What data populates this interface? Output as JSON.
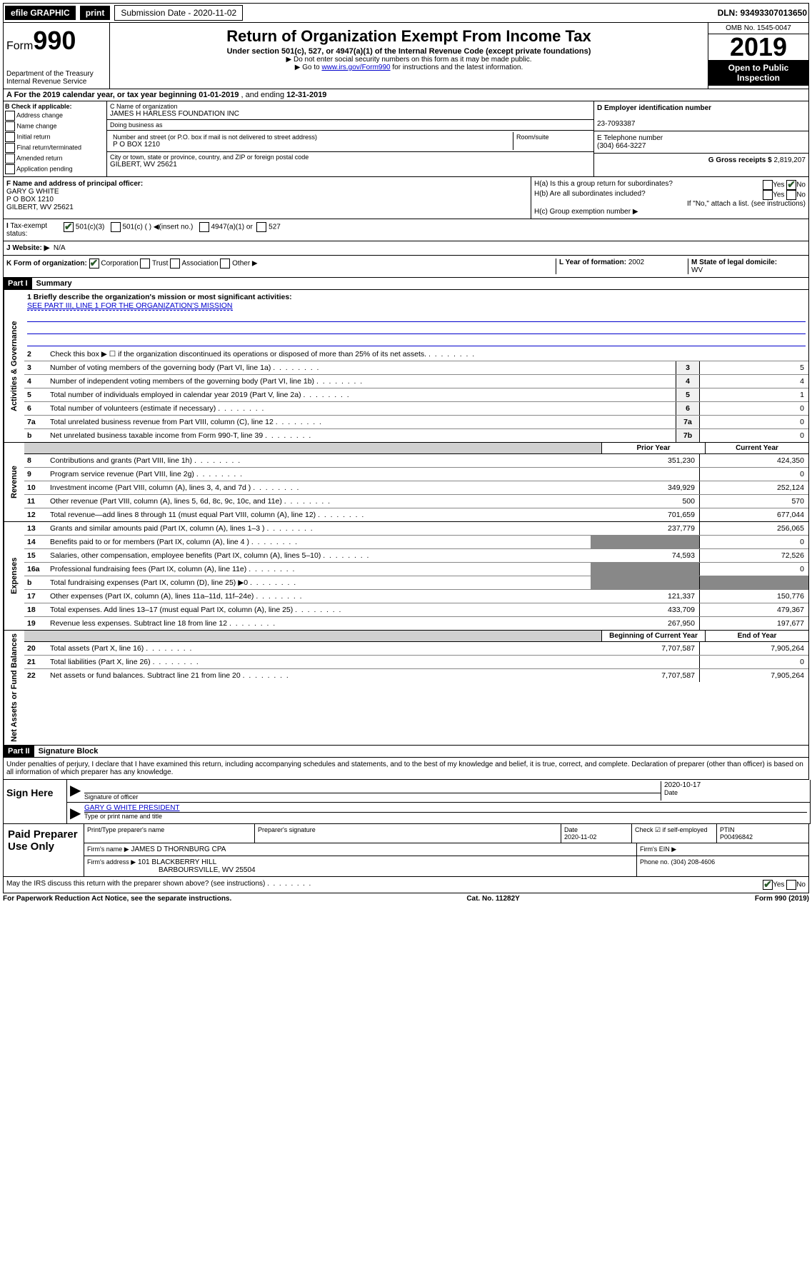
{
  "topbar": {
    "efile": "efile GRAPHIC",
    "print": "print",
    "submission": "Submission Date - 2020-11-02",
    "dln": "DLN: 93493307013650"
  },
  "header": {
    "form_prefix": "Form",
    "form_number": "990",
    "dept": "Department of the Treasury",
    "irs": "Internal Revenue Service",
    "title": "Return of Organization Exempt From Income Tax",
    "sub1": "Under section 501(c), 527, or 4947(a)(1) of the Internal Revenue Code (except private foundations)",
    "sub2a": "▶ Do not enter social security numbers on this form as it may be made public.",
    "sub2b_pre": "▶ Go to ",
    "sub2b_link": "www.irs.gov/Form990",
    "sub2b_post": " for instructions and the latest information.",
    "omb": "OMB No. 1545-0047",
    "year": "2019",
    "openpub1": "Open to Public",
    "openpub2": "Inspection"
  },
  "rowA": {
    "text_pre": "A For the 2019 calendar year, or tax year beginning ",
    "begin": "01-01-2019",
    "mid": " , and ending ",
    "end": "12-31-2019"
  },
  "colB": {
    "header": "B Check if applicable:",
    "opts": [
      "Address change",
      "Name change",
      "Initial return",
      "Final return/terminated",
      "Amended return",
      "Application pending"
    ]
  },
  "colC": {
    "name_label": "C Name of organization",
    "name": "JAMES H HARLESS FOUNDATION INC",
    "dba_label": "Doing business as",
    "dba": "",
    "addr_label": "Number and street (or P.O. box if mail is not delivered to street address)",
    "room_label": "Room/suite",
    "addr": "P O BOX 1210",
    "city_label": "City or town, state or province, country, and ZIP or foreign postal code",
    "city": "GILBERT, WV  25621"
  },
  "colD": {
    "ein_label": "D Employer identification number",
    "ein": "23-7093387",
    "phone_label": "E Telephone number",
    "phone": "(304) 664-3227",
    "gross_label": "G Gross receipts $ ",
    "gross": "2,819,207"
  },
  "sectionF": {
    "label": "F  Name and address of principal officer:",
    "name": "GARY G WHITE",
    "addr1": "P O BOX 1210",
    "addr2": "GILBERT, WV  25621"
  },
  "sectionH": {
    "ha": "H(a)  Is this a group return for subordinates?",
    "hb": "H(b)  Are all subordinates included?",
    "hb_note": "If \"No,\" attach a list. (see instructions)",
    "hc": "H(c)  Group exemption number ▶"
  },
  "taxexempt": {
    "label": "Tax-exempt status:",
    "opt1": "501(c)(3)",
    "opt2": "501(c) (  ) ◀(insert no.)",
    "opt3": "4947(a)(1) or",
    "opt4": "527"
  },
  "website": {
    "label": "J   Website: ▶",
    "val": "N/A"
  },
  "rowK": {
    "label": "K Form of organization:",
    "opts": [
      "Corporation",
      "Trust",
      "Association",
      "Other ▶"
    ],
    "L_label": "L Year of formation: ",
    "L_val": "2002",
    "M_label": "M State of legal domicile:",
    "M_val": "WV"
  },
  "part1_header": "Part I",
  "part1_title": "Summary",
  "mission": {
    "label": "1  Briefly describe the organization's mission or most significant activities:",
    "text": "SEE PART III, LINE 1 FOR THE ORGANIZATION'S MISSION"
  },
  "vlabels": {
    "gov": "Activities & Governance",
    "rev": "Revenue",
    "exp": "Expenses",
    "net": "Net Assets or Fund Balances"
  },
  "gov_lines": [
    {
      "num": "2",
      "desc": "Check this box ▶ ☐  if the organization discontinued its operations or disposed of more than 25% of its net assets.",
      "lbl": "",
      "v": ""
    },
    {
      "num": "3",
      "desc": "Number of voting members of the governing body (Part VI, line 1a)",
      "lbl": "3",
      "v": "5"
    },
    {
      "num": "4",
      "desc": "Number of independent voting members of the governing body (Part VI, line 1b)",
      "lbl": "4",
      "v": "4"
    },
    {
      "num": "5",
      "desc": "Total number of individuals employed in calendar year 2019 (Part V, line 2a)",
      "lbl": "5",
      "v": "1"
    },
    {
      "num": "6",
      "desc": "Total number of volunteers (estimate if necessary)",
      "lbl": "6",
      "v": "0"
    },
    {
      "num": "7a",
      "desc": "Total unrelated business revenue from Part VIII, column (C), line 12",
      "lbl": "7a",
      "v": "0"
    },
    {
      "num": "b",
      "desc": "Net unrelated business taxable income from Form 990-T, line 39",
      "lbl": "7b",
      "v": "0"
    }
  ],
  "col_prior": "Prior Year",
  "col_current": "Current Year",
  "rev_lines": [
    {
      "num": "8",
      "desc": "Contributions and grants (Part VIII, line 1h)",
      "p": "351,230",
      "c": "424,350"
    },
    {
      "num": "9",
      "desc": "Program service revenue (Part VIII, line 2g)",
      "p": "",
      "c": "0"
    },
    {
      "num": "10",
      "desc": "Investment income (Part VIII, column (A), lines 3, 4, and 7d )",
      "p": "349,929",
      "c": "252,124"
    },
    {
      "num": "11",
      "desc": "Other revenue (Part VIII, column (A), lines 5, 6d, 8c, 9c, 10c, and 11e)",
      "p": "500",
      "c": "570"
    },
    {
      "num": "12",
      "desc": "Total revenue—add lines 8 through 11 (must equal Part VIII, column (A), line 12)",
      "p": "701,659",
      "c": "677,044"
    }
  ],
  "exp_lines": [
    {
      "num": "13",
      "desc": "Grants and similar amounts paid (Part IX, column (A), lines 1–3 )",
      "p": "237,779",
      "c": "256,065"
    },
    {
      "num": "14",
      "desc": "Benefits paid to or for members (Part IX, column (A), line 4 )",
      "p": "",
      "c": "0"
    },
    {
      "num": "15",
      "desc": "Salaries, other compensation, employee benefits (Part IX, column (A), lines 5–10)",
      "p": "74,593",
      "c": "72,526"
    },
    {
      "num": "16a",
      "desc": "Professional fundraising fees (Part IX, column (A), line 11e)",
      "p": "",
      "c": "0"
    },
    {
      "num": "b",
      "desc": "Total fundraising expenses (Part IX, column (D), line 25) ▶0",
      "p": "",
      "c": ""
    },
    {
      "num": "17",
      "desc": "Other expenses (Part IX, column (A), lines 11a–11d, 11f–24e)",
      "p": "121,337",
      "c": "150,776"
    },
    {
      "num": "18",
      "desc": "Total expenses. Add lines 13–17 (must equal Part IX, column (A), line 25)",
      "p": "433,709",
      "c": "479,367"
    },
    {
      "num": "19",
      "desc": "Revenue less expenses. Subtract line 18 from line 12",
      "p": "267,950",
      "c": "197,677"
    }
  ],
  "col_begin": "Beginning of Current Year",
  "col_end": "End of Year",
  "net_lines": [
    {
      "num": "20",
      "desc": "Total assets (Part X, line 16)",
      "p": "7,707,587",
      "c": "7,905,264"
    },
    {
      "num": "21",
      "desc": "Total liabilities (Part X, line 26)",
      "p": "",
      "c": "0"
    },
    {
      "num": "22",
      "desc": "Net assets or fund balances. Subtract line 21 from line 20",
      "p": "7,707,587",
      "c": "7,905,264"
    }
  ],
  "part2_header": "Part II",
  "part2_title": "Signature Block",
  "perjury": "Under penalties of perjury, I declare that I have examined this return, including accompanying schedules and statements, and to the best of my knowledge and belief, it is true, correct, and complete. Declaration of preparer (other than officer) is based on all information of which preparer has any knowledge.",
  "sign": {
    "here": "Sign Here",
    "sig_label": "Signature of officer",
    "date": "2020-10-17",
    "date_label": "Date",
    "name": "GARY G WHITE PRESIDENT",
    "name_label": "Type or print name and title"
  },
  "prep": {
    "header": "Paid Preparer Use Only",
    "h1": "Print/Type preparer's name",
    "h2": "Preparer's signature",
    "h3": "Date",
    "h3v": "2020-11-02",
    "h4": "Check ☑ if self-employed",
    "h5": "PTIN",
    "h5v": "P00496842",
    "firm_label": "Firm's name     ▶",
    "firm": "JAMES D THORNBURG CPA",
    "ein_label": "Firm's EIN ▶",
    "addr_label": "Firm's address ▶",
    "addr1": "101 BLACKBERRY HILL",
    "addr2": "BARBOURSVILLE, WV  25504",
    "phone_label": "Phone no. ",
    "phone": "(304) 208-4606"
  },
  "discuss": "May the IRS discuss this return with the preparer shown above? (see instructions)",
  "footer": {
    "pra": "For Paperwork Reduction Act Notice, see the separate instructions.",
    "cat": "Cat. No. 11282Y",
    "form": "Form 990 (2019)"
  }
}
